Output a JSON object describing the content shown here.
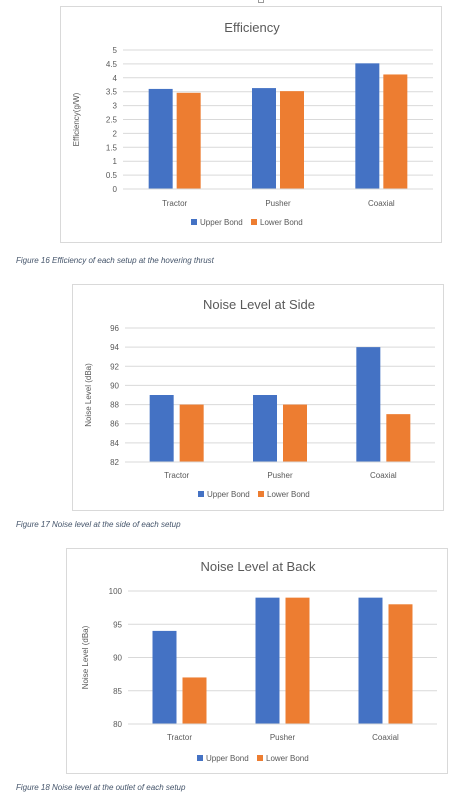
{
  "chart_data": [
    {
      "type": "bar",
      "title": "Efficiency",
      "xlabel": "",
      "ylabel": "Efficiency(g/W)",
      "categories": [
        "Tractor",
        "Pusher",
        "Coaxial"
      ],
      "series": [
        {
          "name": "Upper Bond",
          "values": [
            3.6,
            3.63,
            4.52
          ]
        },
        {
          "name": "Lower Bond",
          "values": [
            3.46,
            3.52,
            4.12
          ]
        }
      ],
      "ylim": [
        0,
        5
      ],
      "yticks": [
        0,
        0.5,
        1,
        1.5,
        2,
        2.5,
        3,
        3.5,
        4,
        4.5,
        5
      ],
      "grid": true,
      "legend": "bottom",
      "colors": [
        "#4472c4",
        "#ed7d31"
      ]
    },
    {
      "type": "bar",
      "title": "Noise Level at Side",
      "xlabel": "",
      "ylabel": "Noise Level (dBa)",
      "categories": [
        "Tractor",
        "Pusher",
        "Coaxial"
      ],
      "series": [
        {
          "name": "Upper Bond",
          "values": [
            89,
            89,
            94
          ]
        },
        {
          "name": "Lower Bond",
          "values": [
            88,
            88,
            87
          ]
        }
      ],
      "ylim": [
        82,
        96
      ],
      "yticks": [
        82,
        84,
        86,
        88,
        90,
        92,
        94,
        96
      ],
      "grid": true,
      "legend": "bottom",
      "colors": [
        "#4472c4",
        "#ed7d31"
      ]
    },
    {
      "type": "bar",
      "title": "Noise Level at Back",
      "xlabel": "",
      "ylabel": "Noise Level (dBa)",
      "categories": [
        "Tractor",
        "Pusher",
        "Coaxial"
      ],
      "series": [
        {
          "name": "Upper Bond",
          "values": [
            94,
            99,
            99
          ]
        },
        {
          "name": "Lower Bond",
          "values": [
            87,
            99,
            98
          ]
        }
      ],
      "ylim": [
        80,
        100
      ],
      "yticks": [
        80,
        85,
        90,
        95,
        100
      ],
      "grid": true,
      "legend": "bottom",
      "colors": [
        "#4472c4",
        "#ed7d31"
      ]
    }
  ],
  "captions": {
    "fig16": "Figure 16 Efficiency of each setup at the hovering thrust",
    "fig17": "Figure 17 Noise level at the side of each setup",
    "fig18": "Figure 18 Noise level at the outlet of each setup"
  }
}
